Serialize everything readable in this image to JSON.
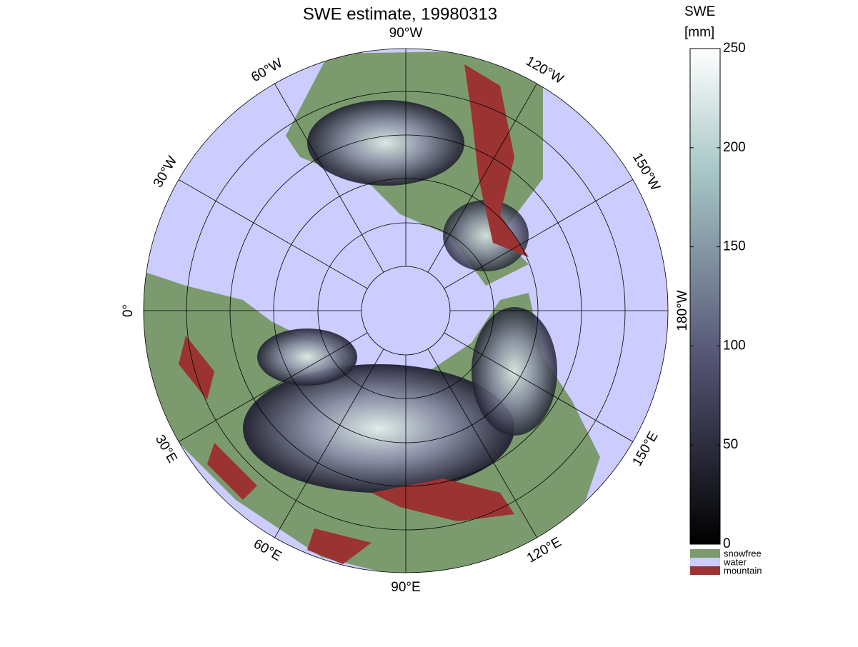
{
  "title": "SWE estimate, 19980313",
  "map": {
    "longitude_labels": [
      "90°W",
      "120°W",
      "150°W",
      "180°W",
      "150°E",
      "120°E",
      "90°E",
      "60°E",
      "30°E",
      "0°",
      "30°W",
      "60°W"
    ]
  },
  "colorbar": {
    "title": [
      "SWE",
      "[mm]"
    ],
    "lim": [
      0,
      250
    ],
    "ticks": [
      0,
      50,
      100,
      150,
      200,
      250
    ]
  },
  "legend": [
    {
      "label": "snowfree",
      "color": "#7b9b6f"
    },
    {
      "label": "water",
      "color": "#ccccff"
    },
    {
      "label": "mountain",
      "color": "#9c3333"
    }
  ]
}
